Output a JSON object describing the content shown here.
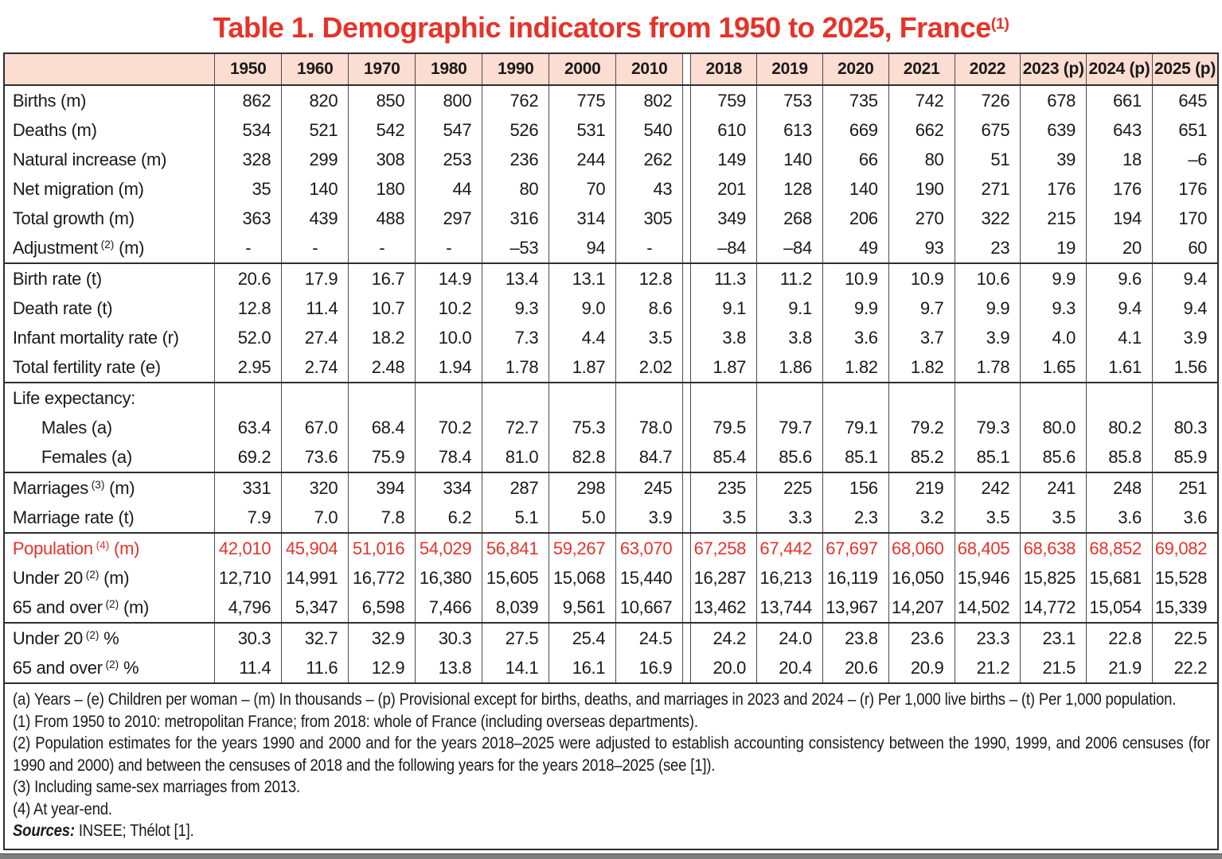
{
  "title": {
    "text": "Table 1. Demographic indicators from 1950 to 2025, France",
    "sup": "(1)"
  },
  "colors": {
    "accent_red": "#e63329",
    "header_bg": "#fcddd1",
    "border_dark": "#2e2e2e",
    "border_inner": "#4d4d4d"
  },
  "table": {
    "year_headers_left": [
      "1950",
      "1960",
      "1970",
      "1980",
      "1990",
      "2000",
      "2010"
    ],
    "year_headers_right": [
      "2018",
      "2019",
      "2020",
      "2021",
      "2022",
      "2023 (p)",
      "2024 (p)",
      "2025 (p)"
    ],
    "sections": [
      {
        "rows": [
          {
            "pre": "Births (m)",
            "sup": "",
            "post": "",
            "indent": false,
            "red": false,
            "left": [
              "862",
              "820",
              "850",
              "800",
              "762",
              "775",
              "802"
            ],
            "right": [
              "759",
              "753",
              "735",
              "742",
              "726",
              "678",
              "661",
              "645"
            ]
          },
          {
            "pre": "Deaths (m)",
            "sup": "",
            "post": "",
            "indent": false,
            "red": false,
            "left": [
              "534",
              "521",
              "542",
              "547",
              "526",
              "531",
              "540"
            ],
            "right": [
              "610",
              "613",
              "669",
              "662",
              "675",
              "639",
              "643",
              "651"
            ]
          },
          {
            "pre": "Natural increase (m)",
            "sup": "",
            "post": "",
            "indent": false,
            "red": false,
            "left": [
              "328",
              "299",
              "308",
              "253",
              "236",
              "244",
              "262"
            ],
            "right": [
              "149",
              "140",
              "66",
              "80",
              "51",
              "39",
              "18",
              "–6"
            ]
          },
          {
            "pre": "Net migration (m)",
            "sup": "",
            "post": "",
            "indent": false,
            "red": false,
            "left": [
              "35",
              "140",
              "180",
              "44",
              "80",
              "70",
              "43"
            ],
            "right": [
              "201",
              "128",
              "140",
              "190",
              "271",
              "176",
              "176",
              "176"
            ]
          },
          {
            "pre": "Total growth (m)",
            "sup": "",
            "post": "",
            "indent": false,
            "red": false,
            "left": [
              "363",
              "439",
              "488",
              "297",
              "316",
              "314",
              "305"
            ],
            "right": [
              "349",
              "268",
              "206",
              "270",
              "322",
              "215",
              "194",
              "170"
            ]
          },
          {
            "pre": "Adjustment",
            "sup": "(2)",
            "post": " (m)",
            "indent": false,
            "red": false,
            "left": [
              "-",
              "-",
              "-",
              "-",
              "–53",
              "94",
              "-"
            ],
            "right": [
              "–84",
              "–84",
              "49",
              "93",
              "23",
              "19",
              "20",
              "60"
            ]
          }
        ]
      },
      {
        "rows": [
          {
            "pre": "Birth rate (t)",
            "sup": "",
            "post": "",
            "indent": false,
            "red": false,
            "left": [
              "20.6",
              "17.9",
              "16.7",
              "14.9",
              "13.4",
              "13.1",
              "12.8"
            ],
            "right": [
              "11.3",
              "11.2",
              "10.9",
              "10.9",
              "10.6",
              "9.9",
              "9.6",
              "9.4"
            ]
          },
          {
            "pre": "Death rate (t)",
            "sup": "",
            "post": "",
            "indent": false,
            "red": false,
            "left": [
              "12.8",
              "11.4",
              "10.7",
              "10.2",
              "9.3",
              "9.0",
              "8.6"
            ],
            "right": [
              "9.1",
              "9.1",
              "9.9",
              "9.7",
              "9.9",
              "9.3",
              "9.4",
              "9.4"
            ]
          },
          {
            "pre": "Infant mortality rate (r)",
            "sup": "",
            "post": "",
            "indent": false,
            "red": false,
            "left": [
              "52.0",
              "27.4",
              "18.2",
              "10.0",
              "7.3",
              "4.4",
              "3.5"
            ],
            "right": [
              "3.8",
              "3.8",
              "3.6",
              "3.7",
              "3.9",
              "4.0",
              "4.1",
              "3.9"
            ]
          },
          {
            "pre": "Total fertility rate (e)",
            "sup": "",
            "post": "",
            "indent": false,
            "red": false,
            "left": [
              "2.95",
              "2.74",
              "2.48",
              "1.94",
              "1.78",
              "1.87",
              "2.02"
            ],
            "right": [
              "1.87",
              "1.86",
              "1.82",
              "1.82",
              "1.78",
              "1.65",
              "1.61",
              "1.56"
            ]
          }
        ]
      },
      {
        "rows": [
          {
            "pre": "Life expectancy:",
            "sup": "",
            "post": "",
            "indent": false,
            "red": false,
            "left": [
              "",
              "",
              "",
              "",
              "",
              "",
              ""
            ],
            "right": [
              "",
              "",
              "",
              "",
              "",
              "",
              "",
              ""
            ]
          },
          {
            "pre": "Males (a)",
            "sup": "",
            "post": "",
            "indent": true,
            "red": false,
            "left": [
              "63.4",
              "67.0",
              "68.4",
              "70.2",
              "72.7",
              "75.3",
              "78.0"
            ],
            "right": [
              "79.5",
              "79.7",
              "79.1",
              "79.2",
              "79.3",
              "80.0",
              "80.2",
              "80.3"
            ]
          },
          {
            "pre": "Females (a)",
            "sup": "",
            "post": "",
            "indent": true,
            "red": false,
            "left": [
              "69.2",
              "73.6",
              "75.9",
              "78.4",
              "81.0",
              "82.8",
              "84.7"
            ],
            "right": [
              "85.4",
              "85.6",
              "85.1",
              "85.2",
              "85.1",
              "85.6",
              "85.8",
              "85.9"
            ]
          }
        ]
      },
      {
        "rows": [
          {
            "pre": "Marriages",
            "sup": "(3)",
            "post": " (m)",
            "indent": false,
            "red": false,
            "left": [
              "331",
              "320",
              "394",
              "334",
              "287",
              "298",
              "245"
            ],
            "right": [
              "235",
              "225",
              "156",
              "219",
              "242",
              "241",
              "248",
              "251"
            ]
          },
          {
            "pre": "Marriage rate (t)",
            "sup": "",
            "post": "",
            "indent": false,
            "red": false,
            "left": [
              "7.9",
              "7.0",
              "7.8",
              "6.2",
              "5.1",
              "5.0",
              "3.9"
            ],
            "right": [
              "3.5",
              "3.3",
              "2.3",
              "3.2",
              "3.5",
              "3.5",
              "3.6",
              "3.6"
            ]
          }
        ]
      },
      {
        "rows": [
          {
            "pre": "Population",
            "sup": "(4)",
            "post": " (m)",
            "indent": false,
            "red": true,
            "left": [
              "42,010",
              "45,904",
              "51,016",
              "54,029",
              "56,841",
              "59,267",
              "63,070"
            ],
            "right": [
              "67,258",
              "67,442",
              "67,697",
              "68,060",
              "68,405",
              "68,638",
              "68,852",
              "69,082"
            ]
          },
          {
            "pre": "Under 20",
            "sup": "(2)",
            "post": " (m)",
            "indent": false,
            "red": false,
            "left": [
              "12,710",
              "14,991",
              "16,772",
              "16,380",
              "15,605",
              "15,068",
              "15,440"
            ],
            "right": [
              "16,287",
              "16,213",
              "16,119",
              "16,050",
              "15,946",
              "15,825",
              "15,681",
              "15,528"
            ]
          },
          {
            "pre": "65 and over",
            "sup": "(2)",
            "post": " (m)",
            "indent": false,
            "red": false,
            "left": [
              "4,796",
              "5,347",
              "6,598",
              "7,466",
              "8,039",
              "9,561",
              "10,667"
            ],
            "right": [
              "13,462",
              "13,744",
              "13,967",
              "14,207",
              "14,502",
              "14,772",
              "15,054",
              "15,339"
            ]
          }
        ]
      },
      {
        "rows": [
          {
            "pre": "Under 20",
            "sup": "(2)",
            "post": " %",
            "indent": false,
            "red": false,
            "left": [
              "30.3",
              "32.7",
              "32.9",
              "30.3",
              "27.5",
              "25.4",
              "24.5"
            ],
            "right": [
              "24.2",
              "24.0",
              "23.8",
              "23.6",
              "23.3",
              "23.1",
              "22.8",
              "22.5"
            ]
          },
          {
            "pre": "65 and over",
            "sup": "(2)",
            "post": " %",
            "indent": false,
            "red": false,
            "left": [
              "11.4",
              "11.6",
              "12.9",
              "13.8",
              "14.1",
              "16.1",
              "16.9"
            ],
            "right": [
              "20.0",
              "20.4",
              "20.6",
              "20.9",
              "21.2",
              "21.5",
              "21.9",
              "22.2"
            ]
          }
        ]
      }
    ],
    "footnotes": [
      {
        "b": "",
        "t": "(a) Years – (e) Children per woman – (m) In thousands – (p) Provisional except for births, deaths, and marriages in 2023 and 2024 – (r) Per 1,000 live births – (t) Per 1,000 population."
      },
      {
        "b": "",
        "t": "(1) From 1950 to 2010: metropolitan France; from 2018: whole of France (including overseas departments)."
      },
      {
        "b": "",
        "t": "(2) Population estimates for the years 1990 and 2000 and for the years 2018–2025 were adjusted to establish accounting consistency between the 1990, 1999, and 2006 censuses (for 1990 and 2000) and between the censuses of 2018 and the following years for the years 2018–2025 (see [1])."
      },
      {
        "b": "",
        "t": "(3) Including same-sex marriages from 2013."
      },
      {
        "b": "",
        "t": "(4) At year-end."
      },
      {
        "b": "Sources:",
        "t": " INSEE; Thélot [1]."
      }
    ]
  }
}
